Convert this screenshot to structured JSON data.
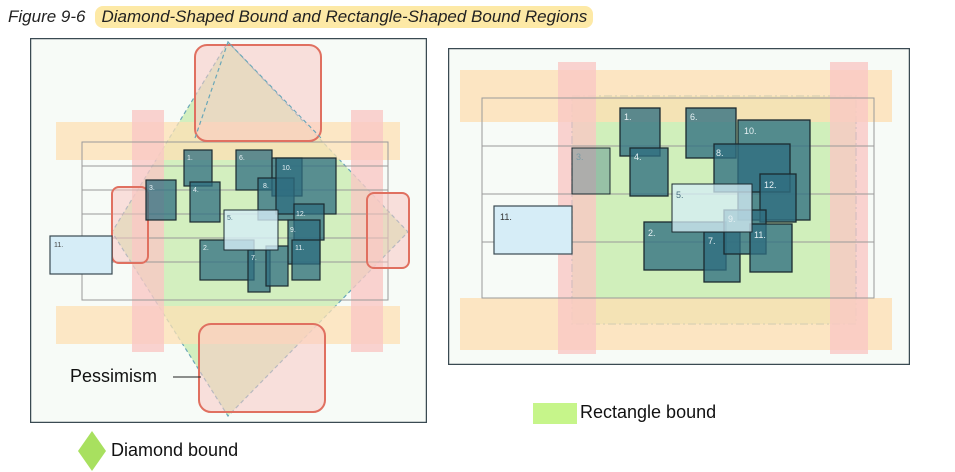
{
  "figure": {
    "number": "Figure 9-6",
    "title": "Diamond-Shaped Bound and Rectangle-Shaped Bound Regions"
  },
  "left_panel": {
    "cell_labels": [
      "1.",
      "4.",
      "6.",
      "10.",
      "8.",
      "3.",
      "5.",
      "12.",
      "9.",
      "2.",
      "7.",
      "11.",
      "11."
    ],
    "pessimism_label": "Pessimism"
  },
  "right_panel": {
    "cell_labels": [
      "1.",
      "4.",
      "3.",
      "6.",
      "10.",
      "8.",
      "12.",
      "5.",
      "9.",
      "2.",
      "7.",
      "11.",
      "11."
    ]
  },
  "legend": {
    "rectangle_label": "Rectangle bound",
    "diamond_label": "Diamond bound",
    "rectangle_color": "#c6f58a",
    "diamond_color": "#a8e05f"
  },
  "colors": {
    "cell_fill": "#2f6e80",
    "green_region": "#c9ecb0",
    "track_orange": "#fde0b4",
    "track_pink": "#f9c8c4",
    "corner_stroke": "#e07060",
    "io_cell_fill": "#d6edf7"
  }
}
